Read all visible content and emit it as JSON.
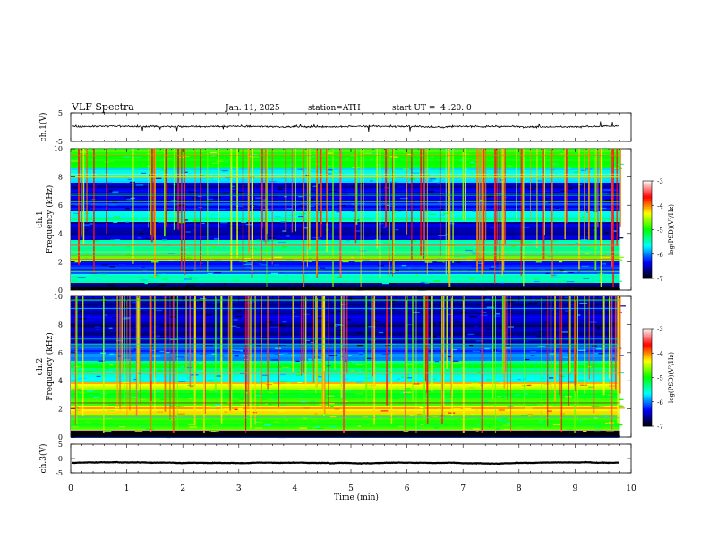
{
  "header": {
    "title": "VLF Spectra",
    "date": "Jan. 11, 2025",
    "station": "station=ATH",
    "start_ut": "start UT =  4 :20: 0"
  },
  "chart_data": [
    {
      "type": "line",
      "panel": "ch1-waveform",
      "ylabel": "ch.1(V)",
      "ylim": [
        -5,
        5
      ],
      "yticks": [
        "5",
        "-5"
      ],
      "xlim": [
        0,
        10
      ],
      "series_color": "#000000",
      "baseline": 0.2,
      "amplitude": 1.3
    },
    {
      "type": "heatmap",
      "panel": "ch1-spectrogram",
      "ylabel": "ch.1 Frequency (kHz)",
      "ylabel_lines": [
        "ch.1",
        "Frequency (kHz)"
      ],
      "ylim": [
        0,
        10
      ],
      "yticks": [
        "0",
        "2",
        "4",
        "6",
        "8",
        "10"
      ],
      "xlim": [
        0,
        9.8
      ],
      "colorbar": {
        "label": "log(PSD)(V²/Hz)",
        "range": [
          -7,
          -3
        ],
        "ticks": [
          "-3",
          "-4",
          "-5",
          "-6",
          "-7"
        ],
        "colors": [
          "#000000",
          "#0000ff",
          "#00ffff",
          "#00ff00",
          "#ffff00",
          "#ff0000",
          "#ffffff"
        ]
      },
      "bands": [
        {
          "f": [
            0,
            0.5
          ],
          "level": -6.8
        },
        {
          "f": [
            0.5,
            1.2
          ],
          "level": -5.5
        },
        {
          "f": [
            1.2,
            2.0
          ],
          "level": -6.2
        },
        {
          "f": [
            2.0,
            2.4
          ],
          "level": -4.7
        },
        {
          "f": [
            2.4,
            3.6
          ],
          "level": -5.4
        },
        {
          "f": [
            3.6,
            4.8
          ],
          "level": -6.5
        },
        {
          "f": [
            4.8,
            5.6
          ],
          "level": -5.6
        },
        {
          "f": [
            5.6,
            7.6
          ],
          "level": -6.4
        },
        {
          "f": [
            7.6,
            8.6
          ],
          "level": -5.7
        },
        {
          "f": [
            8.6,
            10.0
          ],
          "level": -5.0
        }
      ]
    },
    {
      "type": "heatmap",
      "panel": "ch2-spectrogram",
      "ylabel": "ch.2 Frequency (kHz)",
      "ylabel_lines": [
        "ch.2",
        "Frequency (kHz)"
      ],
      "ylim": [
        0,
        10
      ],
      "yticks": [
        "0",
        "2",
        "4",
        "6",
        "8",
        "10"
      ],
      "xlim": [
        0,
        9.8
      ],
      "colorbar": {
        "label": "log(PSD)(V²/Hz)",
        "range": [
          -7,
          -3
        ],
        "ticks": [
          "-3",
          "-4",
          "-5",
          "-6",
          "-7"
        ],
        "colors": [
          "#000000",
          "#0000ff",
          "#00ffff",
          "#00ff00",
          "#ffff00",
          "#ff0000",
          "#ffffff"
        ]
      },
      "bands": [
        {
          "f": [
            0,
            0.4
          ],
          "level": -6.8
        },
        {
          "f": [
            0.4,
            1.6
          ],
          "level": -4.9
        },
        {
          "f": [
            1.6,
            2.2
          ],
          "level": -4.2
        },
        {
          "f": [
            2.2,
            3.4
          ],
          "level": -5.0
        },
        {
          "f": [
            3.4,
            3.9
          ],
          "level": -4.4
        },
        {
          "f": [
            3.9,
            4.6
          ],
          "level": -5.6
        },
        {
          "f": [
            4.6,
            5.4
          ],
          "level": -5.2
        },
        {
          "f": [
            5.4,
            6.5
          ],
          "level": -6.0
        },
        {
          "f": [
            6.5,
            10.0
          ],
          "level": -6.5
        }
      ]
    },
    {
      "type": "line",
      "panel": "ch3-waveform",
      "ylabel": "ch.3(V)",
      "ylim": [
        -5,
        5
      ],
      "yticks": [
        "5",
        "0",
        "-5"
      ],
      "xlim": [
        0,
        10
      ],
      "series_color": "#000000",
      "baseline": -1.5,
      "amplitude": 0.3
    }
  ],
  "x_axis": {
    "label": "Time (min)",
    "range": [
      0,
      10
    ],
    "ticks": [
      "0",
      "1",
      "2",
      "3",
      "4",
      "5",
      "6",
      "7",
      "8",
      "9",
      "10"
    ]
  }
}
